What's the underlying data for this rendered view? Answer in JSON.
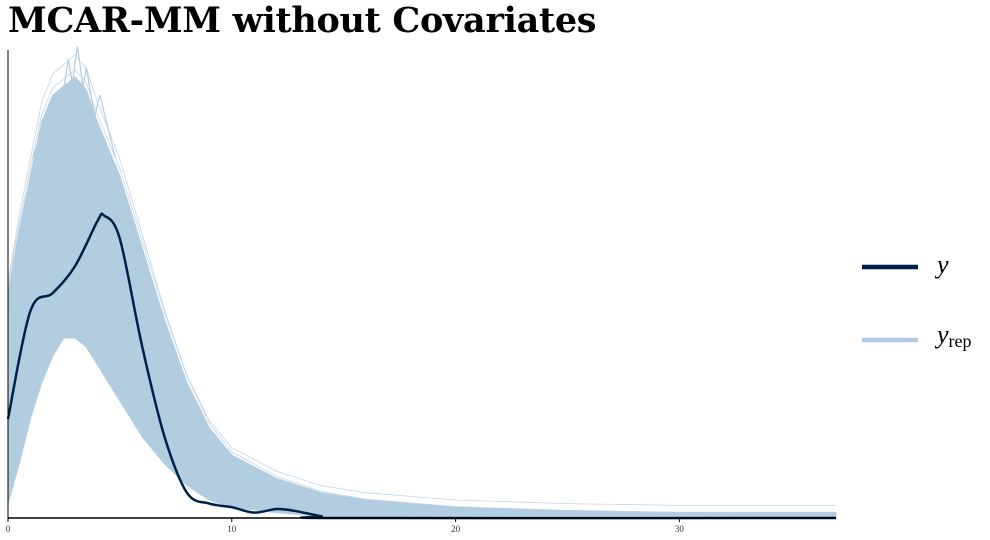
{
  "chart_data": {
    "type": "line",
    "title": "MCAR-MM without Covariates",
    "xlabel": "",
    "ylabel": "",
    "xlim": [
      0,
      37
    ],
    "ylim": [
      0,
      0.26
    ],
    "x_ticks": [
      "0",
      "10",
      "20",
      "30"
    ],
    "legend_position": "right",
    "series": [
      {
        "name": "y",
        "name_main": "y",
        "name_sub": "",
        "color": "#011f4b",
        "x": [
          0,
          1,
          2,
          3,
          4,
          4.3,
          5,
          6,
          7,
          8,
          9,
          10,
          11,
          12,
          12.8,
          14,
          15,
          37
        ],
        "values": [
          0.055,
          0.115,
          0.125,
          0.14,
          0.165,
          0.168,
          0.155,
          0.095,
          0.045,
          0.014,
          0.008,
          0.006,
          0.003,
          0.005,
          0.004,
          0.001,
          0.0,
          0.0
        ]
      },
      {
        "name": "y_rep",
        "name_main": "y",
        "name_sub": "rep",
        "color": "#b3cde0",
        "band_x": [
          0,
          0.5,
          1,
          1.5,
          2,
          2.5,
          3,
          3.5,
          4,
          5,
          6,
          7,
          8,
          9,
          10,
          12,
          14,
          16,
          18,
          20,
          25,
          30,
          37
        ],
        "band_upper": [
          0.125,
          0.16,
          0.19,
          0.22,
          0.235,
          0.24,
          0.245,
          0.238,
          0.22,
          0.19,
          0.15,
          0.11,
          0.075,
          0.05,
          0.035,
          0.022,
          0.014,
          0.01,
          0.008,
          0.006,
          0.004,
          0.003,
          0.003
        ],
        "band_lower": [
          0.008,
          0.03,
          0.055,
          0.075,
          0.09,
          0.1,
          0.1,
          0.095,
          0.085,
          0.065,
          0.045,
          0.03,
          0.018,
          0.01,
          0.006,
          0.003,
          0.001,
          0.0,
          0.0,
          0.0,
          0.0,
          0.0,
          0.0
        ],
        "peak_x": [
          1.8,
          2.2,
          2.7,
          3.1,
          3.5,
          4.1
        ],
        "peak_values": [
          0.225,
          0.232,
          0.255,
          0.262,
          0.25,
          0.235
        ]
      }
    ]
  }
}
